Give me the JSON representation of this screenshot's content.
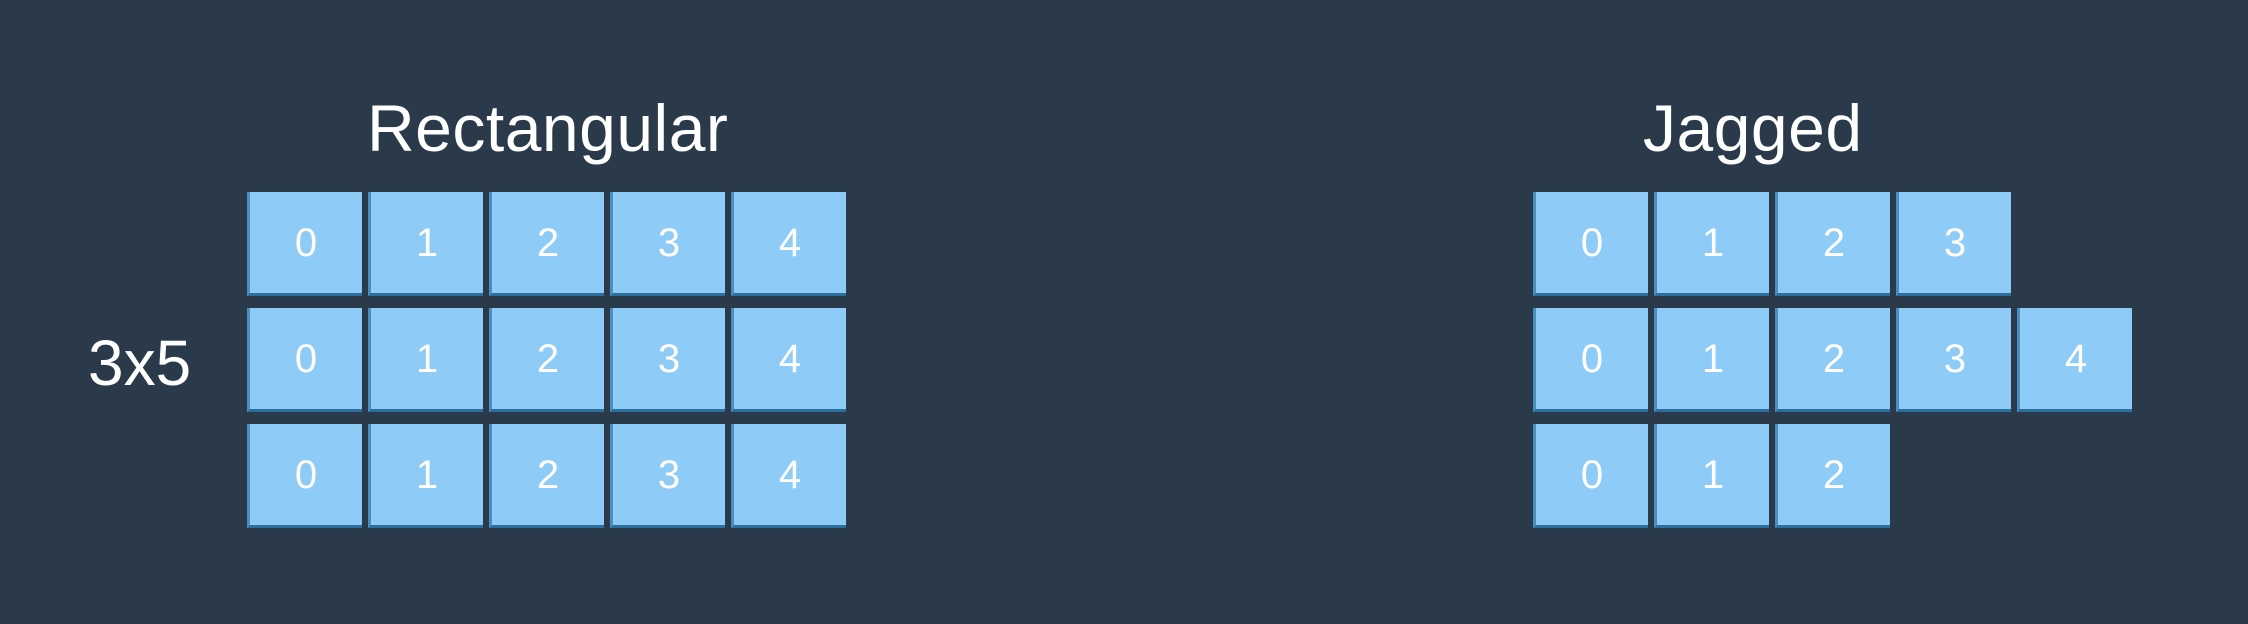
{
  "rectangular": {
    "title": "Rectangular",
    "dimension_label": "3x5",
    "rows": [
      [
        "0",
        "1",
        "2",
        "3",
        "4"
      ],
      [
        "0",
        "1",
        "2",
        "3",
        "4"
      ],
      [
        "0",
        "1",
        "2",
        "3",
        "4"
      ]
    ]
  },
  "jagged": {
    "title": "Jagged",
    "rows": [
      [
        "0",
        "1",
        "2",
        "3"
      ],
      [
        "0",
        "1",
        "2",
        "3",
        "4"
      ],
      [
        "0",
        "1",
        "2"
      ]
    ]
  },
  "colors": {
    "background": "#2a3a4b",
    "cell_fill": "#8ecbf7",
    "cell_shadow": "#2b6f9e",
    "text": "#ffffff"
  }
}
